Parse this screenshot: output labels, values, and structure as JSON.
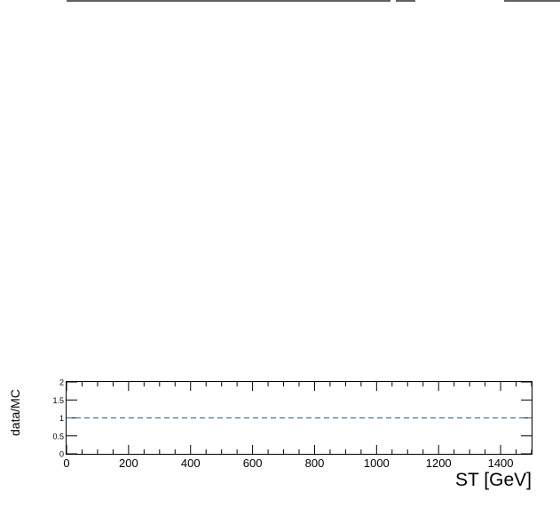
{
  "chart_data": {
    "type": "line",
    "title": "",
    "xlabel": "ST [GeV]",
    "ylabel": "data/MC",
    "xlim": [
      0,
      1500
    ],
    "ylim": [
      0,
      2
    ],
    "x_ticks": [
      "0",
      "200",
      "400",
      "600",
      "800",
      "1000",
      "1200",
      "1400"
    ],
    "y_ticks": [
      "0",
      "0.5",
      "1",
      "1.5",
      "2"
    ],
    "series": [
      {
        "name": "",
        "style": "dashed",
        "color": "#1f5f8b",
        "x": [
          0,
          1500
        ],
        "y": [
          1,
          1
        ]
      }
    ],
    "grid": false,
    "legend": "none"
  }
}
